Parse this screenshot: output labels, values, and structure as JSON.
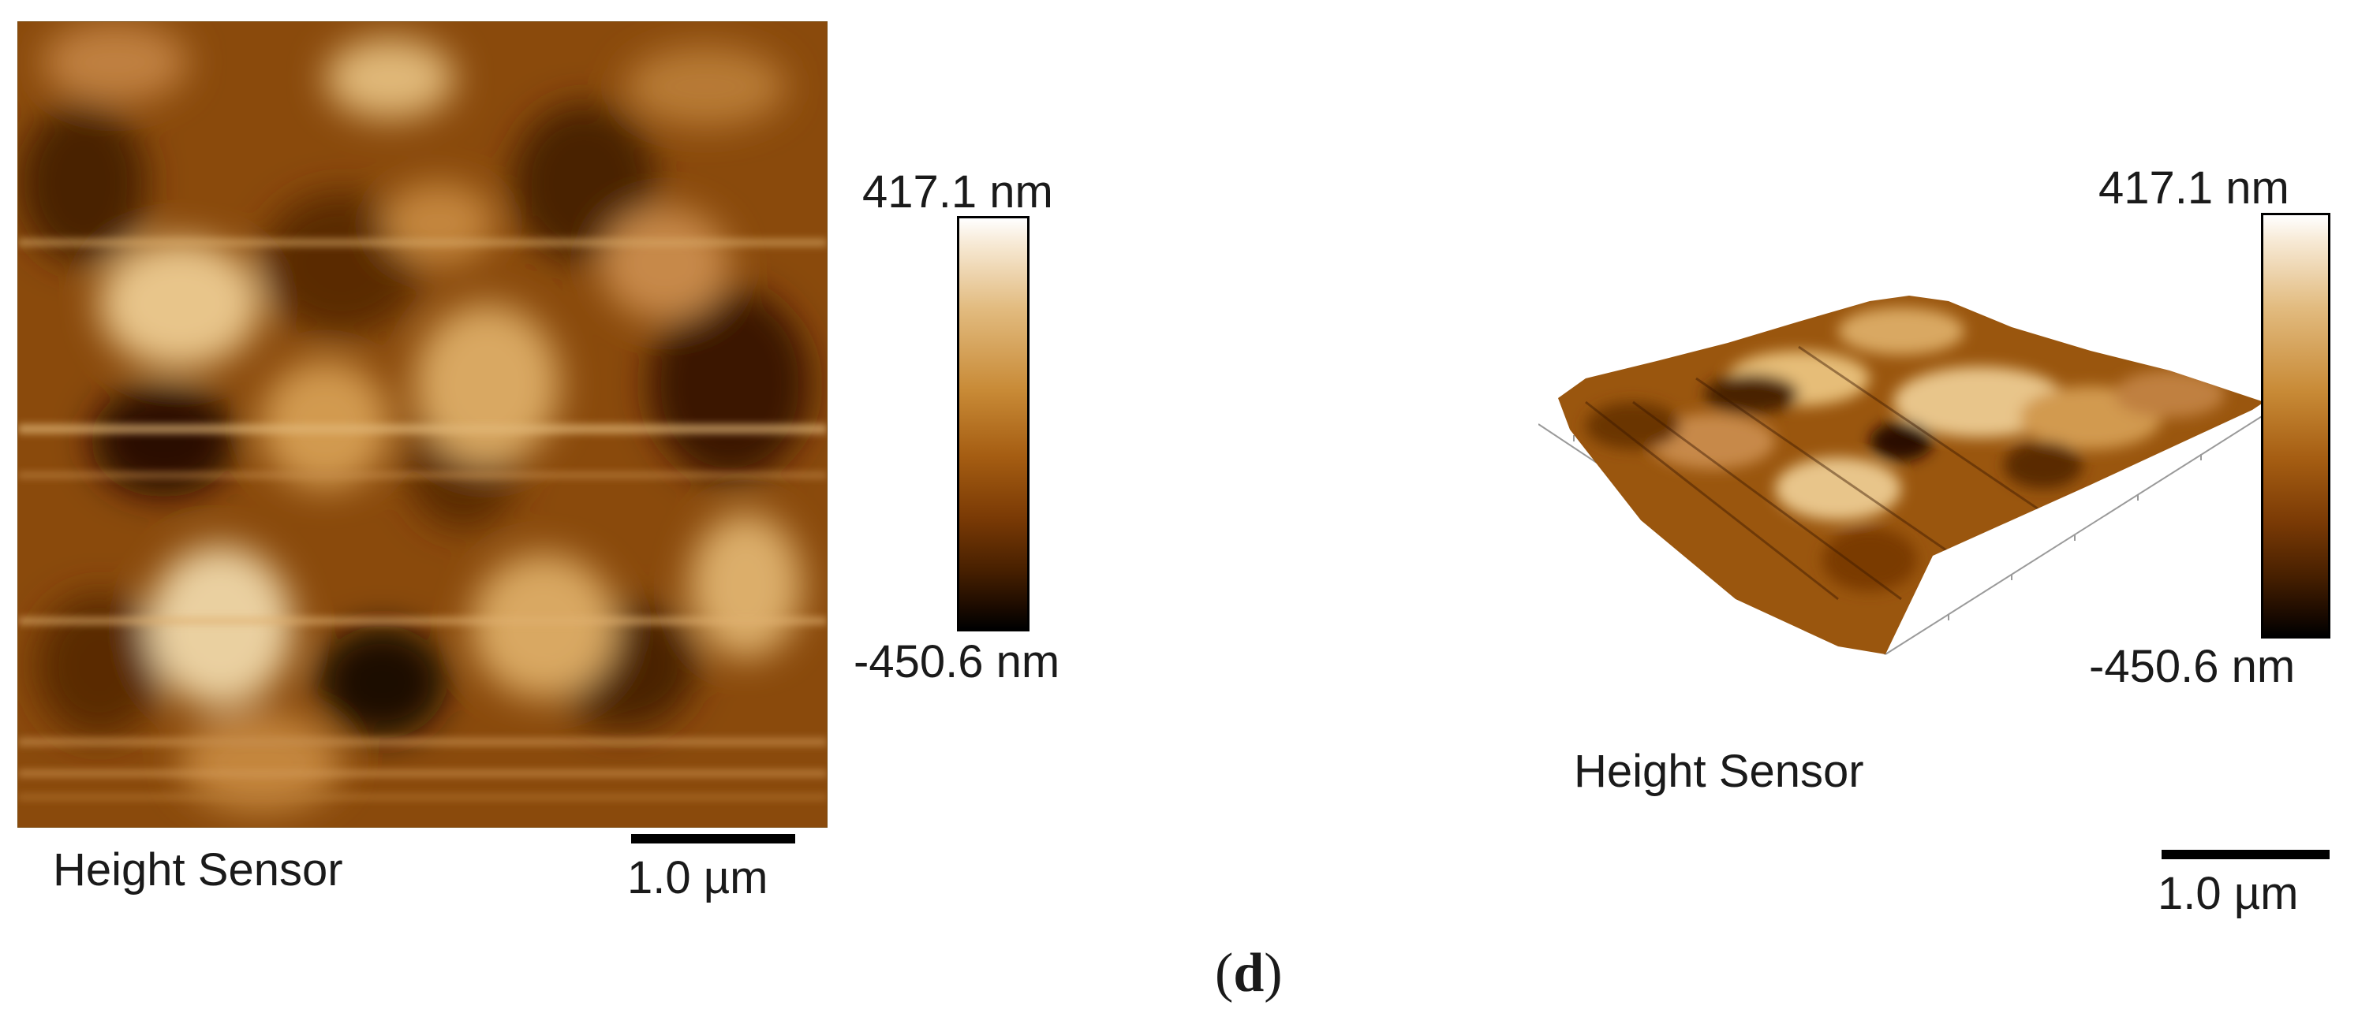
{
  "panel_left": {
    "image_label": "Height Sensor",
    "colorbar_max": "417.1 nm",
    "colorbar_min": "-450.6 nm",
    "scale_bar": "1.0 µm"
  },
  "panel_right": {
    "image_label": "Height Sensor",
    "colorbar_max": "417.1 nm",
    "colorbar_min": "-450.6 nm",
    "scale_bar": "1.0 µm"
  },
  "caption": {
    "open": "(",
    "letter": "d",
    "close": ")"
  },
  "colors": {
    "colormap": [
      "#000000",
      "#461f00",
      "#7a3a05",
      "#a55d12",
      "#c88a36",
      "#e2bb7f",
      "#f7ead6",
      "#ffffff"
    ]
  }
}
